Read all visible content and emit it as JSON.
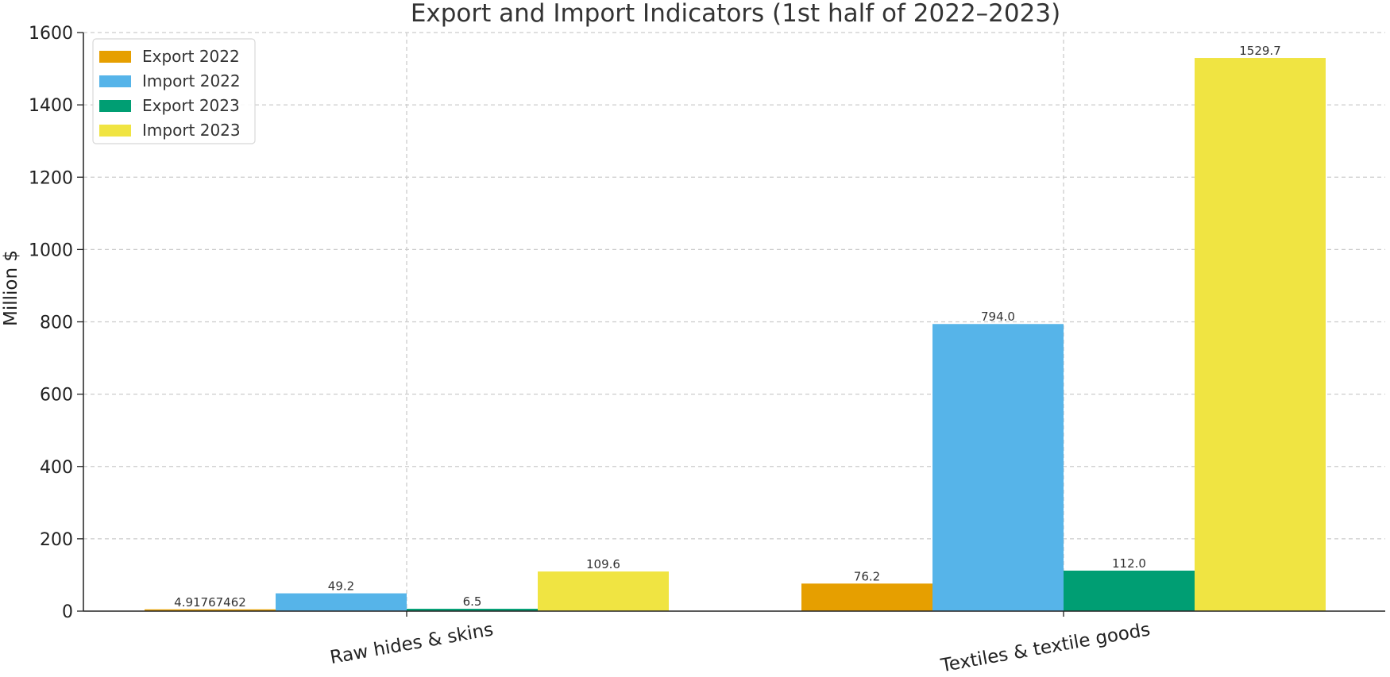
{
  "chart_data": {
    "type": "bar",
    "title": "Export and Import Indicators (1st half of 2022–2023)",
    "ylabel": "Million $",
    "xlabel": "",
    "categories": [
      "Raw hides & skins",
      "Textiles & textile goods"
    ],
    "ylim": [
      0,
      1600
    ],
    "yticks": [
      0,
      200,
      400,
      600,
      800,
      1000,
      1200,
      1400,
      1600
    ],
    "ytick_labels": [
      "0",
      "200",
      "400",
      "600",
      "800",
      "1000",
      "1200",
      "1400",
      "1600"
    ],
    "grid": true,
    "legend_position": "top-left",
    "series": [
      {
        "name": "Export 2022",
        "color": "#E69F00",
        "values": [
          4.91767462,
          76.2
        ],
        "labels": [
          "4.91767462",
          "76.2"
        ]
      },
      {
        "name": "Import 2022",
        "color": "#56B4E9",
        "values": [
          49.2,
          794.0
        ],
        "labels": [
          "49.2",
          "794.0"
        ]
      },
      {
        "name": "Export 2023",
        "color": "#009E73",
        "values": [
          6.5,
          112.0
        ],
        "labels": [
          "6.5",
          "112.0"
        ]
      },
      {
        "name": "Import 2023",
        "color": "#F0E442",
        "values": [
          109.6,
          1529.7
        ],
        "labels": [
          "109.6",
          "1529.7"
        ]
      }
    ]
  }
}
